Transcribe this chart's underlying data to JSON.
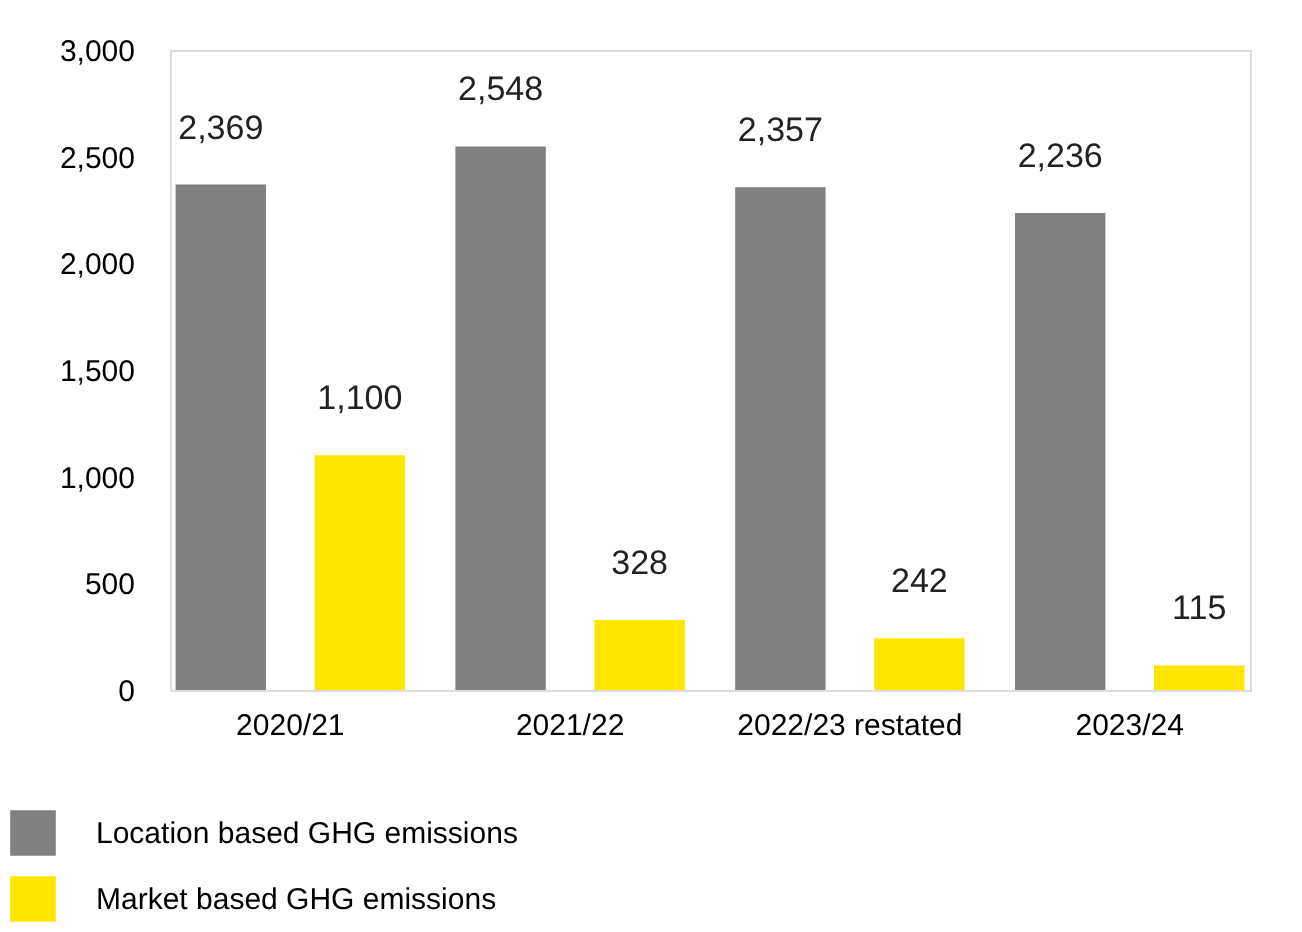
{
  "chart_data": {
    "type": "bar",
    "categories": [
      "2020/21",
      "2021/22",
      "2022/23 restated",
      "2023/24"
    ],
    "series": [
      {
        "name": "Location based GHG emissions",
        "color": "#808080",
        "values": [
          2369,
          2548,
          2357,
          2236
        ],
        "value_labels": [
          "2,369",
          "2,548",
          "2,357",
          "2,236"
        ]
      },
      {
        "name": "Market based GHG emissions",
        "color": "#ffe600",
        "values": [
          1100,
          328,
          242,
          115
        ],
        "value_labels": [
          "1,100",
          "328",
          "242",
          "115"
        ]
      }
    ],
    "ylim": [
      0,
      3000
    ],
    "yticks": [
      0,
      500,
      {
        "value": 1000,
        "label": "1,000"
      },
      {
        "value": 1500,
        "label": "1,500"
      },
      {
        "value": 2000,
        "label": "2,000"
      },
      {
        "value": 2500,
        "label": "2,500"
      },
      {
        "value": 3000,
        "label": "3,000"
      }
    ],
    "grid": false,
    "legend": "bottom left"
  }
}
